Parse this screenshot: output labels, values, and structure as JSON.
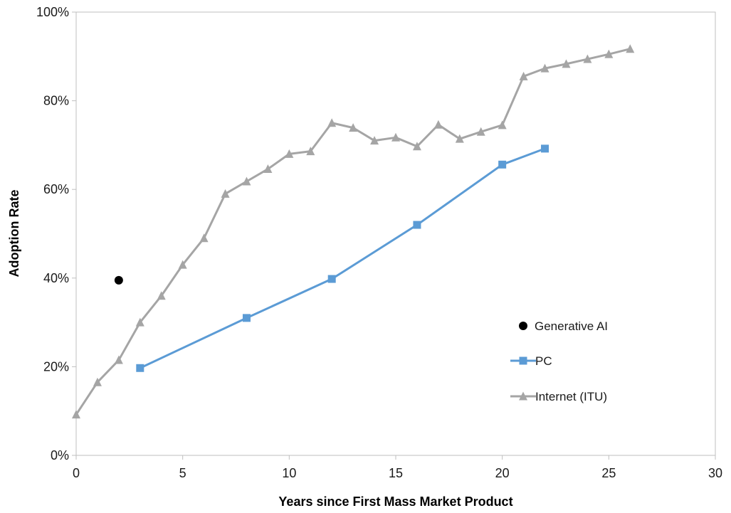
{
  "chart_data": {
    "type": "line",
    "title": "",
    "xlabel": "Years since First Mass Market Product",
    "ylabel": "Adoption Rate",
    "xlim": [
      0,
      30
    ],
    "ylim": [
      0,
      100
    ],
    "x_ticks": [
      0,
      5,
      10,
      15,
      20,
      25,
      30
    ],
    "x_tick_labels": [
      "0",
      "5",
      "10",
      "15",
      "20",
      "25",
      "30"
    ],
    "y_ticks": [
      0,
      20,
      40,
      60,
      80,
      100
    ],
    "y_tick_labels": [
      "0%",
      "20%",
      "40%",
      "60%",
      "80%",
      "100%"
    ],
    "grid": false,
    "legend_position": "right",
    "series": [
      {
        "name": "Generative AI",
        "marker": "circle",
        "line": false,
        "color": "#000000",
        "x": [
          2
        ],
        "y": [
          39.5
        ]
      },
      {
        "name": "PC",
        "marker": "square",
        "line": true,
        "color": "#5b9bd5",
        "x": [
          3,
          8,
          12,
          16,
          20,
          22
        ],
        "y": [
          19.7,
          31.0,
          39.8,
          52.0,
          65.6,
          69.2
        ]
      },
      {
        "name": "Internet (ITU)",
        "marker": "triangle",
        "line": true,
        "color": "#a5a5a5",
        "x": [
          0,
          1,
          2,
          3,
          4,
          5,
          6,
          7,
          8,
          9,
          10,
          11,
          12,
          13,
          14,
          15,
          16,
          17,
          18,
          19,
          20,
          21,
          22,
          23,
          24,
          25,
          26
        ],
        "y": [
          9.2,
          16.5,
          21.5,
          30.0,
          36.0,
          43.0,
          49.0,
          59.0,
          61.8,
          64.6,
          68.0,
          68.6,
          75.0,
          73.9,
          71.0,
          71.7,
          69.7,
          74.6,
          71.4,
          73.0,
          74.5,
          85.5,
          87.3,
          88.3,
          89.4,
          90.5,
          91.7
        ]
      }
    ]
  }
}
